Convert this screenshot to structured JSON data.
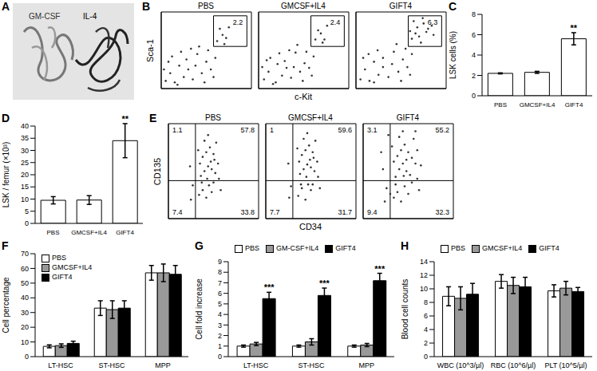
{
  "chart_data": [
    {
      "panel": "A",
      "type": "structure",
      "labels": [
        "GM-CSF",
        "IL-4"
      ]
    },
    {
      "panel": "B",
      "type": "scatter",
      "xlabel": "c-Kit",
      "ylabel": "Sca-1",
      "xlim": [
        0,
        100
      ],
      "ylim": [
        0,
        100
      ],
      "tick_labels": false,
      "plots": [
        {
          "title": "PBS",
          "gate": {
            "x": [
              58,
              95
            ],
            "y": [
              55,
              95
            ]
          },
          "gate_value": 2.2,
          "points": [
            [
              5,
              10
            ],
            [
              10,
              20
            ],
            [
              15,
              8
            ],
            [
              20,
              30
            ],
            [
              25,
              15
            ],
            [
              30,
              25
            ],
            [
              8,
              35
            ],
            [
              12,
              42
            ],
            [
              18,
              5
            ],
            [
              22,
              48
            ],
            [
              28,
              38
            ],
            [
              35,
              12
            ],
            [
              38,
              30
            ],
            [
              40,
              45
            ],
            [
              45,
              20
            ],
            [
              48,
              8
            ],
            [
              50,
              35
            ],
            [
              52,
              50
            ],
            [
              55,
              25
            ],
            [
              58,
              15
            ],
            [
              60,
              40
            ],
            [
              42,
              55
            ],
            [
              33,
              52
            ],
            [
              62,
              62
            ],
            [
              68,
              70
            ],
            [
              72,
              66
            ],
            [
              65,
              78
            ],
            [
              75,
              80
            ],
            [
              70,
              58
            ],
            [
              3,
              25
            ]
          ]
        },
        {
          "title": "GMCSF+IL4",
          "gate": {
            "x": [
              58,
              95
            ],
            "y": [
              55,
              95
            ]
          },
          "gate_value": 2.4,
          "points": [
            [
              6,
              12
            ],
            [
              11,
              22
            ],
            [
              16,
              6
            ],
            [
              21,
              32
            ],
            [
              26,
              17
            ],
            [
              31,
              27
            ],
            [
              9,
              37
            ],
            [
              13,
              40
            ],
            [
              19,
              8
            ],
            [
              23,
              46
            ],
            [
              29,
              36
            ],
            [
              36,
              14
            ],
            [
              39,
              28
            ],
            [
              41,
              47
            ],
            [
              46,
              22
            ],
            [
              49,
              10
            ],
            [
              51,
              33
            ],
            [
              53,
              48
            ],
            [
              56,
              27
            ],
            [
              59,
              17
            ],
            [
              61,
              42
            ],
            [
              43,
              57
            ],
            [
              34,
              50
            ],
            [
              63,
              64
            ],
            [
              69,
              72
            ],
            [
              73,
              64
            ],
            [
              66,
              76
            ],
            [
              76,
              82
            ],
            [
              4,
              28
            ],
            [
              71,
              60
            ]
          ]
        },
        {
          "title": "GIFT4",
          "gate": {
            "x": [
              58,
              95
            ],
            "y": [
              55,
              95
            ]
          },
          "gate_value": 6.3,
          "points": [
            [
              5,
              12
            ],
            [
              10,
              25
            ],
            [
              15,
              10
            ],
            [
              20,
              35
            ],
            [
              25,
              18
            ],
            [
              30,
              28
            ],
            [
              8,
              40
            ],
            [
              14,
              45
            ],
            [
              20,
              8
            ],
            [
              24,
              50
            ],
            [
              30,
              40
            ],
            [
              36,
              15
            ],
            [
              40,
              32
            ],
            [
              42,
              48
            ],
            [
              47,
              22
            ],
            [
              50,
              10
            ],
            [
              52,
              38
            ],
            [
              55,
              52
            ],
            [
              57,
              28
            ],
            [
              60,
              18
            ],
            [
              62,
              45
            ],
            [
              45,
              58
            ],
            [
              62,
              65
            ],
            [
              66,
              72
            ],
            [
              70,
              68
            ],
            [
              68,
              80
            ],
            [
              75,
              85
            ],
            [
              78,
              74
            ],
            [
              72,
              60
            ],
            [
              80,
              78
            ],
            [
              64,
              88
            ],
            [
              74,
              92
            ],
            [
              84,
              82
            ],
            [
              60,
              75
            ],
            [
              86,
              70
            ]
          ]
        }
      ]
    },
    {
      "panel": "C",
      "type": "bar",
      "ylabel": "LSK cells (%)",
      "categories": [
        "PBS",
        "GMCSF+IL4",
        "GIFT4"
      ],
      "values": [
        2.2,
        2.3,
        5.6
      ],
      "errors": [
        0.05,
        0.1,
        0.6
      ],
      "color": "#ffffff",
      "ylim": [
        0,
        8
      ],
      "yticks": [
        0,
        2,
        4,
        6,
        8
      ],
      "annotations": [
        {
          "category": "GIFT4",
          "text": "**"
        }
      ]
    },
    {
      "panel": "D",
      "type": "bar",
      "ylabel": "LSK / femur (×10³)",
      "categories": [
        "PBS",
        "GMCSF+IL4",
        "GIFT4"
      ],
      "values": [
        9.5,
        9.6,
        34
      ],
      "errors": [
        1.5,
        1.8,
        7
      ],
      "color": "#ffffff",
      "ylim": [
        0,
        40
      ],
      "yticks": [
        0,
        5,
        10,
        15,
        20,
        25,
        30,
        35,
        40
      ],
      "annotations": [
        {
          "category": "GIFT4",
          "text": "**"
        }
      ]
    },
    {
      "panel": "E",
      "type": "scatter",
      "xlabel": "CD34",
      "ylabel": "CD135",
      "xlim": [
        0,
        100
      ],
      "ylim": [
        0,
        100
      ],
      "tick_labels": false,
      "quadrant_lines": {
        "x": 30,
        "y": 40
      },
      "plots": [
        {
          "title": "PBS",
          "quadrants": {
            "upper_left": 1.1,
            "upper_right": 57.8,
            "lower_left": 7.4,
            "lower_right": 33.8
          },
          "points": [
            [
              34,
              25
            ],
            [
              38,
              30
            ],
            [
              42,
              22
            ],
            [
              45,
              35
            ],
            [
              48,
              28
            ],
            [
              50,
              38
            ],
            [
              36,
              45
            ],
            [
              40,
              50
            ],
            [
              44,
              55
            ],
            [
              47,
              60
            ],
            [
              52,
              48
            ],
            [
              55,
              58
            ],
            [
              38,
              65
            ],
            [
              42,
              70
            ],
            [
              46,
              75
            ],
            [
              50,
              68
            ],
            [
              53,
              80
            ],
            [
              40,
              82
            ],
            [
              44,
              88
            ],
            [
              48,
              52
            ],
            [
              35,
              58
            ],
            [
              56,
              42
            ],
            [
              58,
              30
            ],
            [
              33,
              72
            ],
            [
              25,
              20
            ],
            [
              27,
              35
            ],
            [
              24,
              55
            ],
            [
              51,
              62
            ],
            [
              43,
              42
            ],
            [
              37,
              38
            ]
          ]
        },
        {
          "title": "GMCSF+IL4",
          "quadrants": {
            "upper_left": 1.0,
            "upper_right": 59.6,
            "lower_left": 7.7,
            "lower_right": 31.7
          },
          "points": [
            [
              36,
              24
            ],
            [
              40,
              32
            ],
            [
              44,
              20
            ],
            [
              47,
              36
            ],
            [
              50,
              30
            ],
            [
              52,
              36
            ],
            [
              38,
              47
            ],
            [
              42,
              52
            ],
            [
              46,
              57
            ],
            [
              49,
              62
            ],
            [
              54,
              50
            ],
            [
              57,
              60
            ],
            [
              40,
              67
            ],
            [
              44,
              72
            ],
            [
              48,
              77
            ],
            [
              52,
              70
            ],
            [
              55,
              82
            ],
            [
              42,
              84
            ],
            [
              46,
              90
            ],
            [
              50,
              54
            ],
            [
              37,
              60
            ],
            [
              58,
              44
            ],
            [
              60,
              32
            ],
            [
              35,
              74
            ],
            [
              26,
              22
            ],
            [
              28,
              34
            ],
            [
              25,
              58
            ],
            [
              53,
              64
            ],
            [
              45,
              44
            ],
            [
              39,
              36
            ]
          ]
        },
        {
          "title": "GIFT4",
          "quadrants": {
            "upper_left": 3.1,
            "upper_right": 55.2,
            "lower_left": 9.4,
            "lower_right": 32.3
          },
          "points": [
            [
              34,
              22
            ],
            [
              38,
              28
            ],
            [
              42,
              18
            ],
            [
              46,
              34
            ],
            [
              50,
              26
            ],
            [
              54,
              38
            ],
            [
              36,
              44
            ],
            [
              40,
              52
            ],
            [
              44,
              58
            ],
            [
              48,
              62
            ],
            [
              52,
              46
            ],
            [
              58,
              58
            ],
            [
              38,
              66
            ],
            [
              42,
              72
            ],
            [
              46,
              78
            ],
            [
              50,
              70
            ],
            [
              56,
              84
            ],
            [
              40,
              86
            ],
            [
              44,
              92
            ],
            [
              48,
              50
            ],
            [
              34,
              60
            ],
            [
              60,
              42
            ],
            [
              62,
              30
            ],
            [
              32,
              76
            ],
            [
              24,
              18
            ],
            [
              26,
              32
            ],
            [
              22,
              52
            ],
            [
              20,
              70
            ],
            [
              54,
              64
            ],
            [
              45,
              45
            ],
            [
              36,
              36
            ],
            [
              60,
              72
            ],
            [
              64,
              56
            ],
            [
              28,
              88
            ],
            [
              58,
              92
            ],
            [
              30,
              26
            ]
          ]
        }
      ]
    },
    {
      "panel": "F",
      "type": "bar",
      "ylabel": "Cell percentage",
      "categories": [
        "LT-HSC",
        "ST-HSC",
        "MPP"
      ],
      "legend": "upper left",
      "ylim": [
        0,
        70
      ],
      "yticks": [
        0,
        10,
        20,
        30,
        40,
        50,
        60,
        70
      ],
      "series": [
        {
          "name": "PBS",
          "color": "#ffffff",
          "values": [
            7,
            33,
            57
          ],
          "errors": [
            1,
            5,
            5
          ]
        },
        {
          "name": "GMCSF+IL4",
          "color": "#999999",
          "values": [
            7.5,
            32,
            57
          ],
          "errors": [
            1.2,
            6,
            6
          ]
        },
        {
          "name": "GIFT4",
          "color": "#000000",
          "values": [
            9,
            33,
            56
          ],
          "errors": [
            1.5,
            5,
            6
          ]
        }
      ]
    },
    {
      "panel": "G",
      "type": "bar",
      "ylabel": "Cell fold increase",
      "categories": [
        "LT-HSC",
        "ST-HSC",
        "MPP"
      ],
      "legend": "top",
      "ylim": [
        0,
        9
      ],
      "yticks": [
        0,
        1,
        2,
        3,
        4,
        5,
        6,
        7,
        8,
        9
      ],
      "series": [
        {
          "name": "PBS",
          "color": "#ffffff",
          "values": [
            1,
            1,
            1
          ],
          "errors": [
            0.1,
            0.1,
            0.1
          ]
        },
        {
          "name": "GM-CSF+IL4",
          "color": "#999999",
          "values": [
            1.2,
            1.4,
            1.1
          ],
          "errors": [
            0.15,
            0.3,
            0.15
          ]
        },
        {
          "name": "GIFT4",
          "color": "#000000",
          "values": [
            5.5,
            5.8,
            7.2
          ],
          "errors": [
            0.6,
            0.7,
            0.7
          ]
        }
      ],
      "annotations": [
        {
          "series": "GIFT4",
          "category": "LT-HSC",
          "text": "***"
        },
        {
          "series": "GIFT4",
          "category": "ST-HSC",
          "text": "***"
        },
        {
          "series": "GIFT4",
          "category": "MPP",
          "text": "***"
        }
      ]
    },
    {
      "panel": "H",
      "type": "bar",
      "ylabel": "Blood cell counts",
      "categories": [
        "WBC (10^3/µl)",
        "RBC (10^6/µl)",
        "PLT (10^5/µl)"
      ],
      "legend": "top",
      "ylim": [
        0,
        14
      ],
      "yticks": [
        0,
        2,
        4,
        6,
        8,
        10,
        12,
        14
      ],
      "series": [
        {
          "name": "PBS",
          "color": "#ffffff",
          "values": [
            8.9,
            11.1,
            9.7
          ],
          "errors": [
            1.4,
            1.0,
            0.9
          ]
        },
        {
          "name": "GMCSF+IL4",
          "color": "#999999",
          "values": [
            8.6,
            10.5,
            10.1
          ],
          "errors": [
            1.7,
            1.2,
            1.0
          ]
        },
        {
          "name": "GIFT4",
          "color": "#000000",
          "values": [
            9.2,
            10.3,
            9.6
          ],
          "errors": [
            1.6,
            1.4,
            0.6
          ]
        }
      ]
    }
  ]
}
